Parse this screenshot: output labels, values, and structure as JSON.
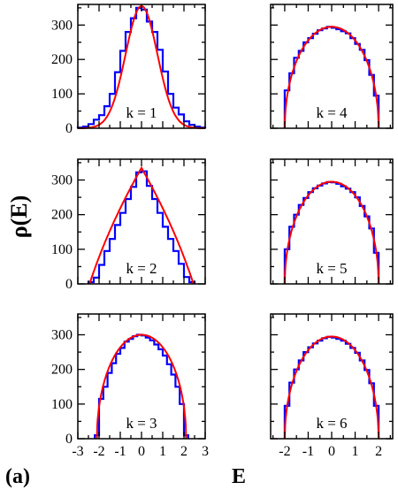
{
  "figure": {
    "panel_label": "(a)",
    "ylabel": "ρ(E)",
    "xlabel": "E"
  },
  "colors": {
    "histogram": "#0000ff",
    "fit": "#ff0000",
    "axis": "#000000"
  },
  "chart_data": [
    {
      "type": "line",
      "label": "k = 1",
      "xlim": [
        -3,
        3
      ],
      "ylim": [
        0,
        360
      ],
      "xticks": [
        -3,
        -2,
        -1,
        0,
        1,
        2,
        3
      ],
      "yticks": [
        0,
        100,
        200,
        300
      ],
      "show_xtick_labels": false,
      "show_ytick_labels": true,
      "fit_curve": {
        "shape": "gaussian",
        "peak": 355,
        "sigma": 0.75
      },
      "histogram": {
        "bin_width": 0.25,
        "x": [
          -2.875,
          -2.625,
          -2.375,
          -2.125,
          -1.875,
          -1.625,
          -1.375,
          -1.125,
          -0.875,
          -0.625,
          -0.375,
          -0.125,
          0.125,
          0.375,
          0.625,
          0.875,
          1.125,
          1.375,
          1.625,
          1.875,
          2.125,
          2.375,
          2.625,
          2.875
        ],
        "values": [
          2,
          5,
          12,
          25,
          38,
          64,
          100,
          163,
          225,
          280,
          320,
          350,
          345,
          310,
          280,
          228,
          165,
          100,
          60,
          40,
          20,
          10,
          5,
          2
        ]
      }
    },
    {
      "type": "line",
      "label": "k = 4",
      "xlim": [
        -2.6,
        2.6
      ],
      "ylim": [
        0,
        360
      ],
      "xticks": [
        -2,
        -1,
        0,
        1,
        2
      ],
      "yticks": [
        0,
        100,
        200,
        300
      ],
      "show_xtick_labels": false,
      "show_ytick_labels": false,
      "fit_curve": {
        "shape": "semicircle",
        "peak": 295,
        "radius": 2.0
      },
      "histogram": {
        "bin_width": 0.2,
        "x": [
          -1.9,
          -1.7,
          -1.5,
          -1.3,
          -1.1,
          -0.9,
          -0.7,
          -0.5,
          -0.3,
          -0.1,
          0.1,
          0.3,
          0.5,
          0.7,
          0.9,
          1.1,
          1.3,
          1.5,
          1.7,
          1.9
        ],
        "values": [
          110,
          160,
          205,
          225,
          250,
          262,
          275,
          285,
          290,
          295,
          292,
          288,
          282,
          276,
          262,
          245,
          228,
          198,
          155,
          95
        ]
      }
    },
    {
      "type": "line",
      "label": "k = 2",
      "xlim": [
        -3,
        3
      ],
      "ylim": [
        0,
        360
      ],
      "xticks": [
        -3,
        -2,
        -1,
        0,
        1,
        2,
        3
      ],
      "yticks": [
        0,
        100,
        200,
        300
      ],
      "show_xtick_labels": false,
      "show_ytick_labels": true,
      "fit_curve": {
        "shape": "triangle",
        "peak": 335,
        "half_width": 2.45
      },
      "histogram": {
        "bin_width": 0.25,
        "x": [
          -2.375,
          -2.125,
          -1.875,
          -1.625,
          -1.375,
          -1.125,
          -0.875,
          -0.625,
          -0.375,
          -0.125,
          0.125,
          0.375,
          0.625,
          0.875,
          1.125,
          1.375,
          1.625,
          1.875,
          2.125,
          2.375
        ],
        "values": [
          5,
          18,
          55,
          95,
          130,
          170,
          205,
          245,
          280,
          322,
          325,
          283,
          245,
          205,
          165,
          130,
          95,
          58,
          20,
          5
        ]
      }
    },
    {
      "type": "line",
      "label": "k = 5",
      "xlim": [
        -2.6,
        2.6
      ],
      "ylim": [
        0,
        360
      ],
      "xticks": [
        -2,
        -1,
        0,
        1,
        2
      ],
      "yticks": [
        0,
        100,
        200,
        300
      ],
      "show_xtick_labels": false,
      "show_ytick_labels": false,
      "fit_curve": {
        "shape": "semicircle",
        "peak": 295,
        "radius": 2.0
      },
      "histogram": {
        "bin_width": 0.2,
        "x": [
          -1.9,
          -1.7,
          -1.5,
          -1.3,
          -1.1,
          -0.9,
          -0.7,
          -0.5,
          -0.3,
          -0.1,
          0.1,
          0.3,
          0.5,
          0.7,
          0.9,
          1.1,
          1.3,
          1.5,
          1.7,
          1.9
        ],
        "values": [
          100,
          165,
          200,
          228,
          248,
          265,
          276,
          284,
          290,
          294,
          293,
          289,
          282,
          275,
          265,
          250,
          225,
          195,
          160,
          90
        ]
      }
    },
    {
      "type": "line",
      "label": "k = 3",
      "xlim": [
        -3,
        3
      ],
      "ylim": [
        0,
        360
      ],
      "xticks": [
        -3,
        -2,
        -1,
        0,
        1,
        2,
        3
      ],
      "yticks": [
        0,
        100,
        200,
        300
      ],
      "xtick_labels": [
        "-3",
        "-2",
        "-1",
        "0",
        "1",
        "2",
        "3"
      ],
      "show_xtick_labels": true,
      "show_ytick_labels": true,
      "fit_curve": {
        "shape": "semicircle",
        "peak": 300,
        "radius": 2.1
      },
      "histogram": {
        "bin_width": 0.2,
        "x": [
          -2.1,
          -1.9,
          -1.7,
          -1.5,
          -1.3,
          -1.1,
          -0.9,
          -0.7,
          -0.5,
          -0.3,
          -0.1,
          0.1,
          0.3,
          0.5,
          0.7,
          0.9,
          1.1,
          1.3,
          1.5,
          1.7,
          1.9,
          2.1
        ],
        "values": [
          10,
          115,
          150,
          190,
          218,
          245,
          262,
          280,
          288,
          296,
          300,
          298,
          292,
          284,
          272,
          258,
          240,
          215,
          185,
          150,
          100,
          10
        ]
      }
    },
    {
      "type": "line",
      "label": "k = 6",
      "xlim": [
        -2.6,
        2.6
      ],
      "ylim": [
        0,
        360
      ],
      "xticks": [
        -2,
        -1,
        0,
        1,
        2
      ],
      "yticks": [
        0,
        100,
        200,
        300
      ],
      "xtick_labels": [
        "-2",
        "-1",
        "0",
        "1",
        "2"
      ],
      "show_xtick_labels": true,
      "show_ytick_labels": false,
      "fit_curve": {
        "shape": "semicircle",
        "peak": 295,
        "radius": 2.0
      },
      "histogram": {
        "bin_width": 0.2,
        "x": [
          -1.9,
          -1.7,
          -1.5,
          -1.3,
          -1.1,
          -0.9,
          -0.7,
          -0.5,
          -0.3,
          -0.1,
          0.1,
          0.3,
          0.5,
          0.7,
          0.9,
          1.1,
          1.3,
          1.5,
          1.7,
          1.9
        ],
        "values": [
          95,
          162,
          200,
          226,
          250,
          264,
          275,
          283,
          290,
          294,
          292,
          288,
          283,
          274,
          262,
          248,
          226,
          198,
          160,
          95
        ]
      }
    }
  ]
}
